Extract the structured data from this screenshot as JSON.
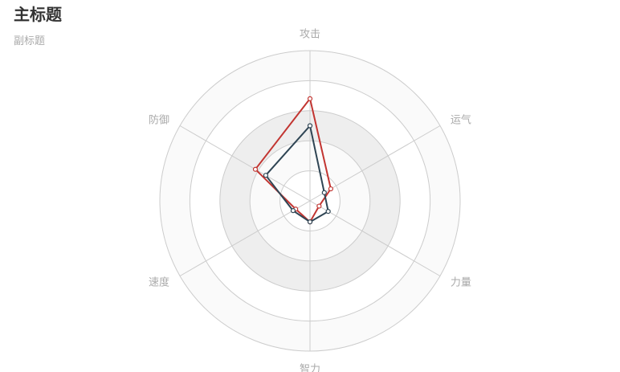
{
  "chart_data": {
    "type": "radar",
    "title": "主标题",
    "subtitle": "副标题",
    "indicators": [
      {
        "name": "攻击",
        "max": 100
      },
      {
        "name": "运气",
        "max": 100
      },
      {
        "name": "力量",
        "max": 100
      },
      {
        "name": "智力",
        "max": 100
      },
      {
        "name": "速度",
        "max": 100
      },
      {
        "name": "防御",
        "max": 100
      }
    ],
    "highlight_indicator": "防御",
    "split_number": 5,
    "series": [
      {
        "values": [
          68,
          16,
          7,
          14,
          11,
          42
        ],
        "color": "#c23531"
      },
      {
        "values": [
          50,
          11,
          14,
          14,
          13,
          34
        ],
        "color": "#2f4554"
      }
    ],
    "colors": {
      "label": "#aaaaaa",
      "highlight_label": "#008000",
      "split_line": "#cccccc",
      "split_area": [
        "#ffffff",
        "#fafafa",
        "#eeeeee"
      ]
    }
  }
}
